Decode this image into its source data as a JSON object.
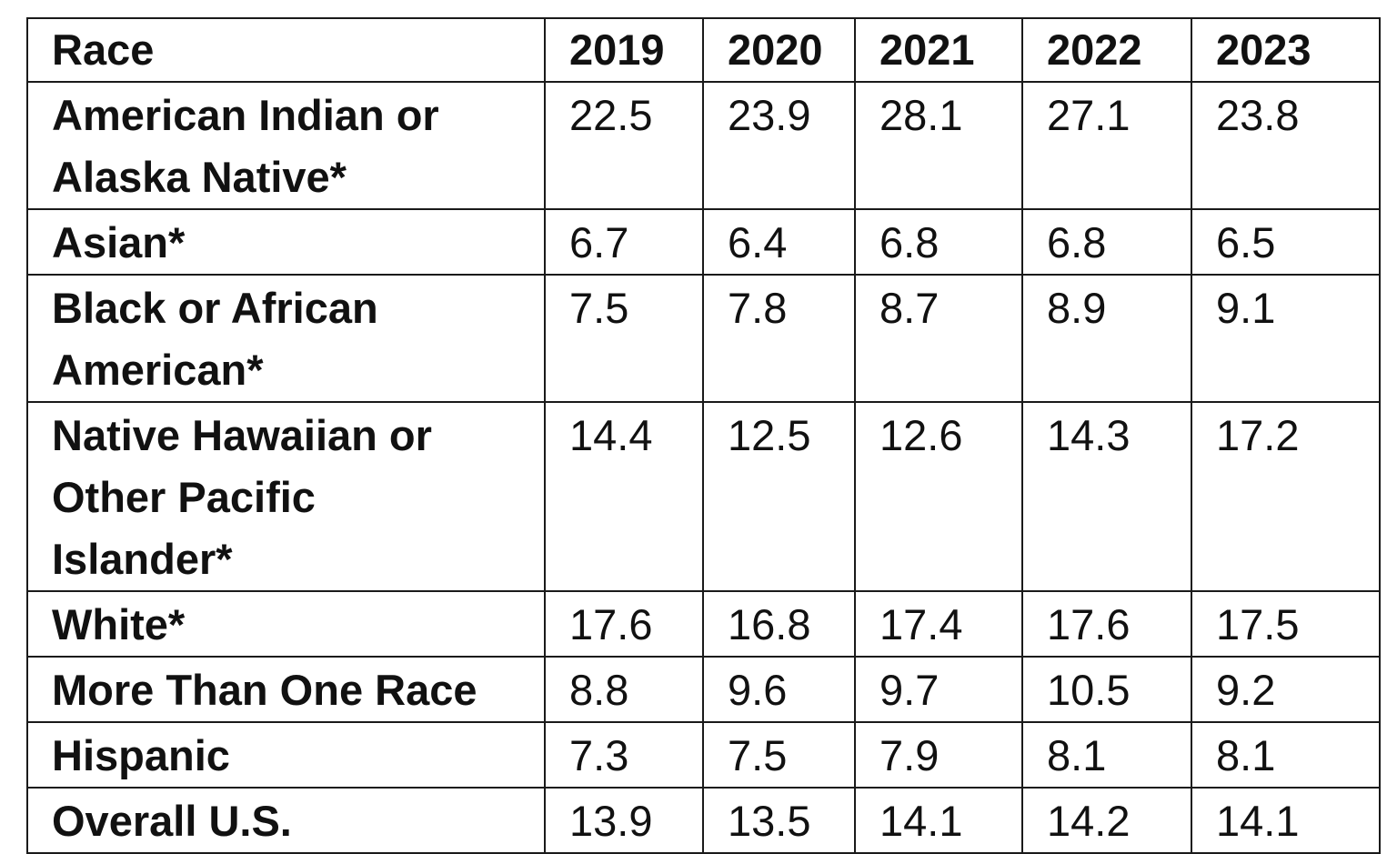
{
  "chart_data": {
    "type": "table",
    "columns": [
      "Race",
      "2019",
      "2020",
      "2021",
      "2022",
      "2023"
    ],
    "rows": [
      {
        "label_lines": [
          "American Indian or",
          "Alaska Native*"
        ],
        "values": [
          "22.5",
          "23.9",
          "28.1",
          "27.1",
          "23.8"
        ]
      },
      {
        "label_lines": [
          "Asian*"
        ],
        "values": [
          "6.7",
          "6.4",
          "6.8",
          "6.8",
          "6.5"
        ]
      },
      {
        "label_lines": [
          "Black or African",
          "American*"
        ],
        "values": [
          "7.5",
          "7.8",
          "8.7",
          "8.9",
          "9.1"
        ]
      },
      {
        "label_lines": [
          "Native Hawaiian or",
          "Other Pacific",
          "Islander*"
        ],
        "values": [
          "14.4",
          "12.5",
          "12.6",
          "14.3",
          "17.2"
        ]
      },
      {
        "label_lines": [
          "White*"
        ],
        "values": [
          "17.6",
          "16.8",
          "17.4",
          "17.6",
          "17.5"
        ]
      },
      {
        "label_lines": [
          "More Than One Race"
        ],
        "values": [
          "8.8",
          "9.6",
          "9.7",
          "10.5",
          "9.2"
        ]
      },
      {
        "label_lines": [
          "Hispanic"
        ],
        "values": [
          "7.3",
          "7.5",
          "7.9",
          "8.1",
          "8.1"
        ]
      },
      {
        "label_lines": [
          "Overall U.S."
        ],
        "values": [
          "13.9",
          "13.5",
          "14.1",
          "14.2",
          "14.1"
        ]
      }
    ]
  }
}
